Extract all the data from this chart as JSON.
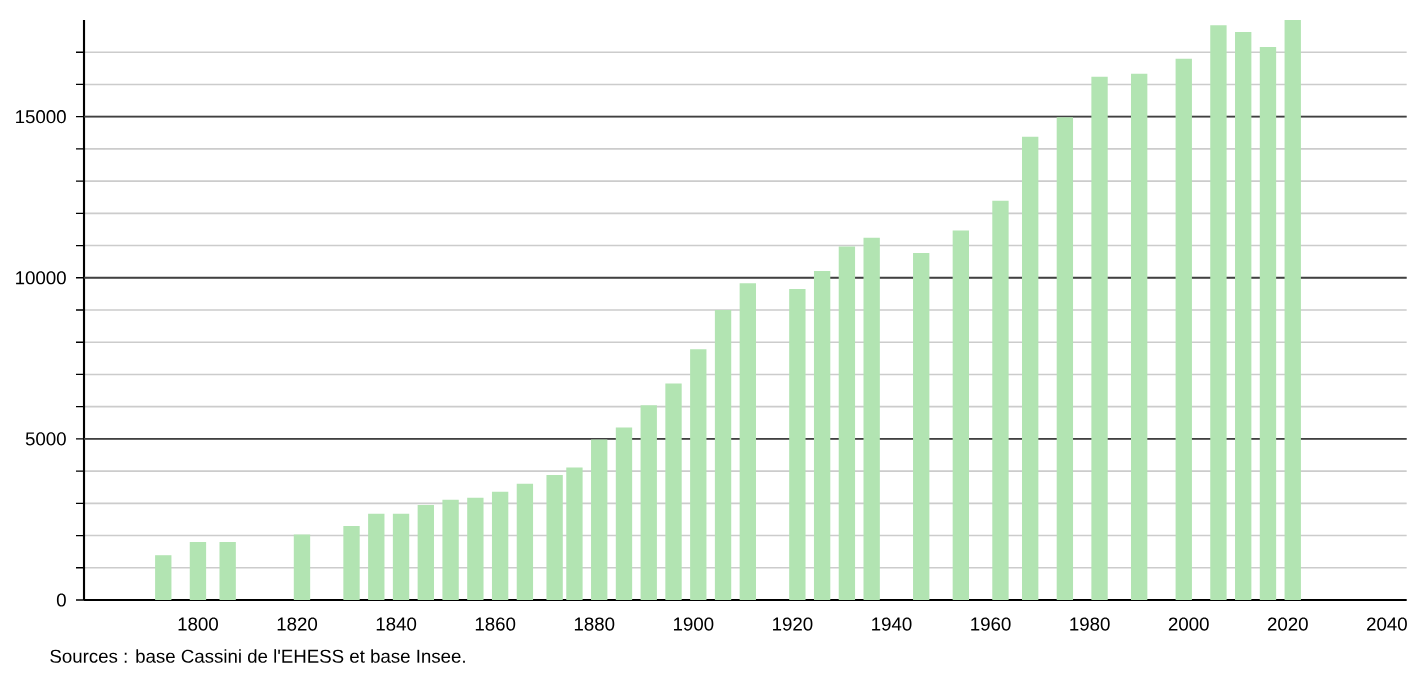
{
  "chart_data": {
    "type": "bar",
    "annotations": [
      "Sources : base Cassini de l'EHESS et base Insee."
    ],
    "x": [
      1793,
      1800,
      1806,
      1821,
      1831,
      1836,
      1841,
      1846,
      1851,
      1856,
      1861,
      1866,
      1872,
      1876,
      1881,
      1886,
      1891,
      1896,
      1901,
      1906,
      1911,
      1921,
      1926,
      1931,
      1936,
      1946,
      1954,
      1962,
      1968,
      1975,
      1982,
      1990,
      1999,
      2006,
      2011,
      2016,
      2021
    ],
    "values": [
      1390,
      1800,
      1800,
      2030,
      2300,
      2680,
      2680,
      2950,
      3110,
      3170,
      3360,
      3610,
      3880,
      4110,
      4980,
      5350,
      6040,
      6720,
      7780,
      9000,
      9830,
      9650,
      10210,
      10970,
      11240,
      10770,
      11470,
      12390,
      14380,
      14980,
      16240,
      16330,
      16800,
      17840,
      17630,
      17160,
      18000
    ],
    "color": "#b2e4b2",
    "xlim": [
      1777,
      2044
    ],
    "ylim": [
      0,
      18000
    ],
    "xticks": [
      1800,
      1820,
      1840,
      1860,
      1880,
      1900,
      1920,
      1940,
      1960,
      1980,
      2000,
      2020,
      2040
    ],
    "yticks": [
      0,
      {
        "value": 1000,
        "label": null
      },
      {
        "value": 2000,
        "label": null
      },
      {
        "value": 3000,
        "label": null
      },
      {
        "value": 4000,
        "label": null
      },
      5000,
      {
        "value": 6000,
        "label": null
      },
      {
        "value": 7000,
        "label": null
      },
      {
        "value": 8000,
        "label": null
      },
      {
        "value": 9000,
        "label": null
      },
      10000,
      {
        "value": 11000,
        "label": null
      },
      {
        "value": 12000,
        "label": null
      },
      {
        "value": 13000,
        "label": null
      },
      {
        "value": 14000,
        "label": null
      },
      15000,
      {
        "value": 16000,
        "label": null
      },
      {
        "value": 17000,
        "label": null
      }
    ],
    "grid": "y"
  }
}
